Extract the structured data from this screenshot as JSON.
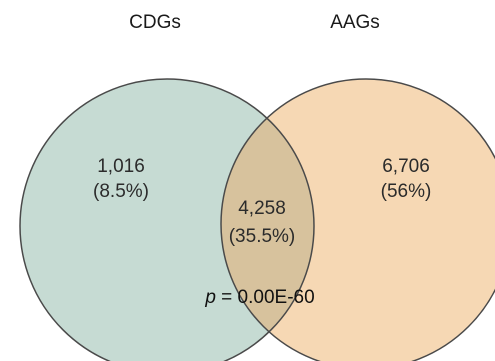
{
  "sets": {
    "left": {
      "label": "CDGs",
      "fill_color": "#c6dbd3",
      "stroke_color": "#4a4a4a"
    },
    "right": {
      "label": "AAGs",
      "fill_color": "#f6d8b4",
      "stroke_color": "#4a4a4a"
    },
    "overlap_fill_color": "#d7c29d"
  },
  "regions": {
    "left_only": {
      "count": "1,016",
      "percent": "(8.5%)"
    },
    "both": {
      "count": "4,258",
      "percent": "(35.5%)"
    },
    "right_only": {
      "count": "6,706",
      "percent": "(56%)"
    }
  },
  "stats": {
    "p_symbol": "p",
    "p_rest": " = 0.00E-60"
  }
}
